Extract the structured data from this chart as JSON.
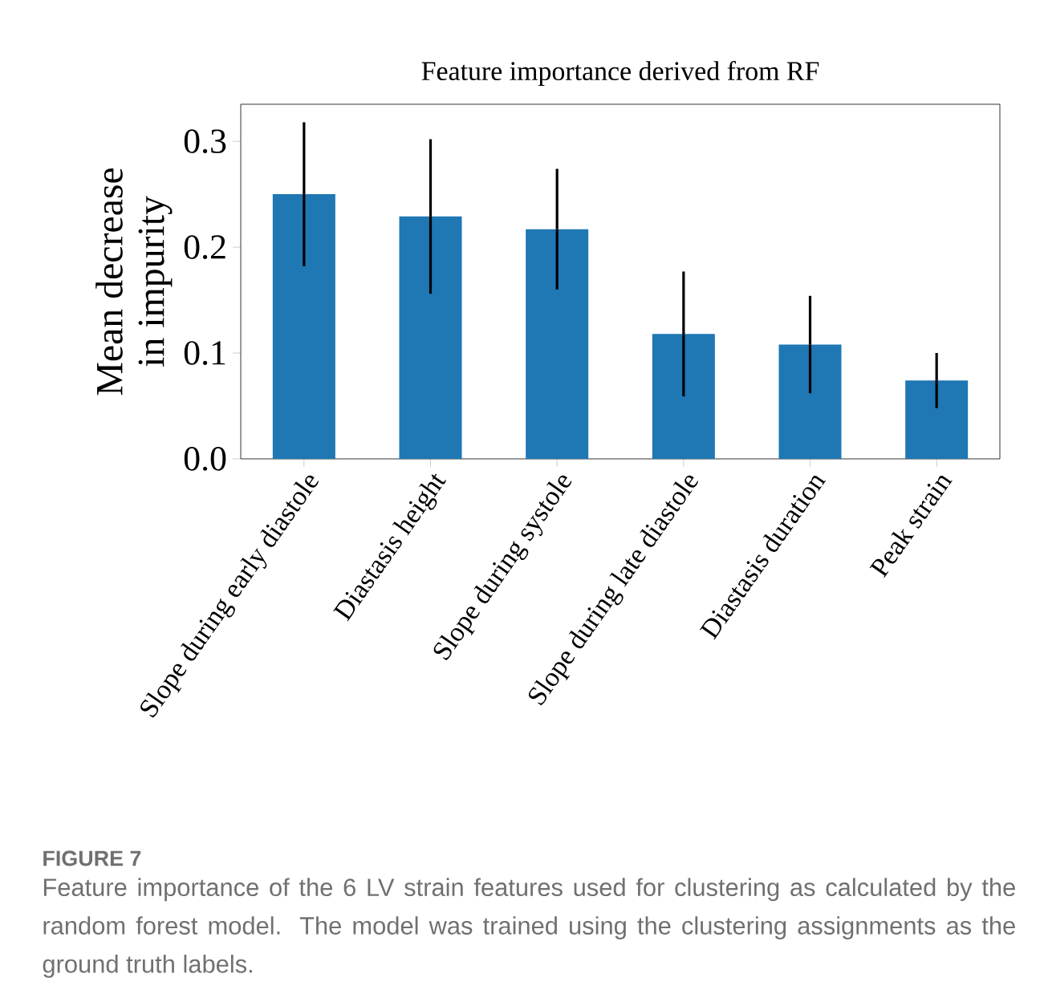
{
  "chart_data": {
    "type": "bar",
    "title": "Feature importance derived from RF",
    "ylabel": "Mean decrease\nin impurity",
    "categories": [
      "Slope during early diastole",
      "Diastasis height",
      "Slope during systole",
      "Slope during late diastole",
      "Diastasis duration",
      "Peak strain"
    ],
    "values": [
      0.25,
      0.229,
      0.217,
      0.118,
      0.108,
      0.074
    ],
    "errors": [
      0.068,
      0.073,
      0.057,
      0.059,
      0.046,
      0.026
    ],
    "color": "#1f77b4",
    "ylim": [
      0,
      0.335
    ],
    "yticks": [
      {
        "value": 0,
        "label": "0.0"
      },
      {
        "value": 0.1,
        "label": "0.1"
      },
      {
        "value": 0.2,
        "label": "0.2"
      },
      {
        "value": 0.3,
        "label": "0.3"
      }
    ],
    "annotations": [
      "FIGURE 7",
      "Feature importance of the 6 LV strain features used for clustering as calculated by the random forest model. The model was trained using the clustering assignments as the ground truth labels."
    ]
  }
}
